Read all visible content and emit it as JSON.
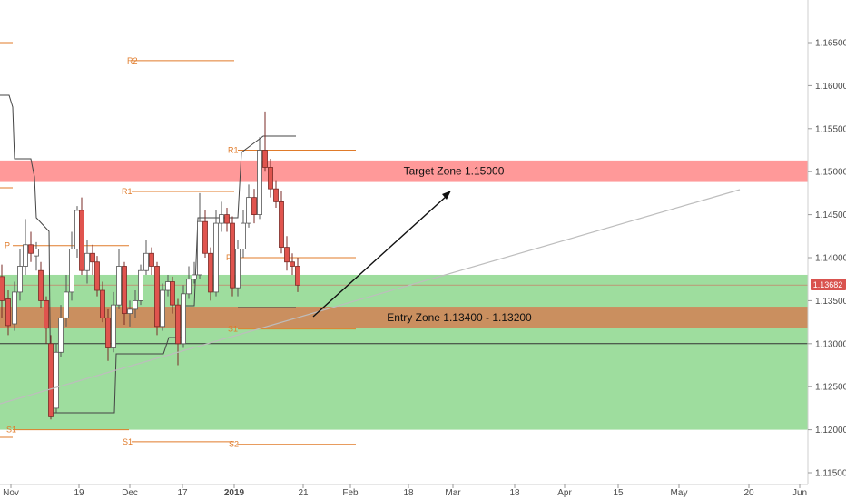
{
  "chart_data": {
    "type": "candlestick",
    "y_ticks": [
      "1.16500",
      "1.16000",
      "1.15500",
      "1.15000",
      "1.14500",
      "1.14000",
      "1.13500",
      "1.13000",
      "1.12500",
      "1.12000",
      "1.11500"
    ],
    "y_range": [
      1.1125,
      1.17
    ],
    "x_ticks": [
      "Nov",
      "19",
      "Dec",
      "17",
      "2019",
      "21",
      "Feb",
      "18",
      "Mar",
      "18",
      "Apr",
      "15",
      "May",
      "20",
      "Jun"
    ],
    "last_price": "1.13682",
    "zones": [
      {
        "name": "target",
        "label": "Target Zone 1.15000",
        "from": 1.1488,
        "to": 1.1513,
        "color": "#ff9999"
      },
      {
        "name": "entry",
        "label": "Entry Zone 1.13400 - 1.13200",
        "from": 1.1318,
        "to": 1.1343,
        "color": "#cc8a5c"
      },
      {
        "name": "green",
        "label": "",
        "from": 1.12,
        "to": 1.138,
        "color": "#9edd9e"
      }
    ],
    "pivots": [
      {
        "label": "R2",
        "value": 1.1629
      },
      {
        "label": "R1",
        "value": 1.1525
      },
      {
        "label": "R1",
        "value": 1.1477
      },
      {
        "label": "P",
        "value": 1.1414
      },
      {
        "label": "P",
        "value": 1.14
      },
      {
        "label": "S1",
        "value": 1.12
      },
      {
        "label": "S1",
        "value": 1.1317
      },
      {
        "label": "S1",
        "value": 1.1186
      },
      {
        "label": "S2",
        "value": 1.1183
      }
    ],
    "colors": {
      "up": "#ffffff",
      "down": "#e0544e",
      "pivot": "#e07b2a",
      "accent": "#d9534f"
    }
  }
}
